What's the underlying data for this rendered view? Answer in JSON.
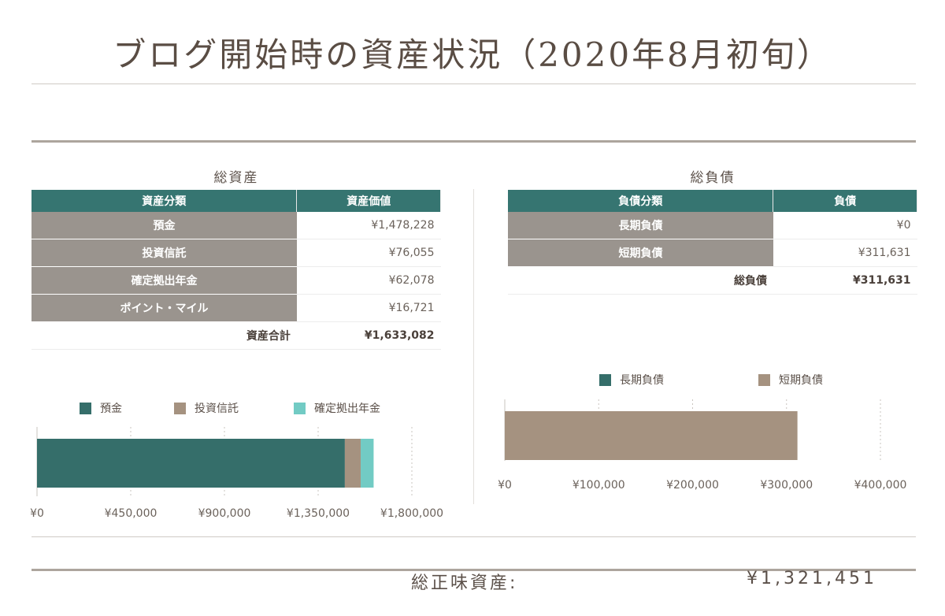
{
  "title": "ブログ開始時の資産状況（2020年8月初旬）",
  "assets": {
    "section_title": "総資産",
    "headers": [
      "資産分類",
      "資産価値"
    ],
    "rows": [
      {
        "label": "預金",
        "value": "¥1,478,228"
      },
      {
        "label": "投資信託",
        "value": "¥76,055"
      },
      {
        "label": "確定拠出年金",
        "value": "¥62,078"
      },
      {
        "label": "ポイント・マイル",
        "value": "¥16,721"
      }
    ],
    "total_label": "資産合計",
    "total_value": "¥1,633,082"
  },
  "liabilities": {
    "section_title": "総負債",
    "headers": [
      "負債分類",
      "負債"
    ],
    "rows": [
      {
        "label": "長期負債",
        "value": "¥0"
      },
      {
        "label": "短期負債",
        "value": "¥311,631"
      }
    ],
    "total_label": "総負債",
    "total_value": "¥311,631"
  },
  "net_worth": {
    "label": "総正味資産:",
    "value": "¥1,321,451"
  },
  "colors": {
    "header_teal": "#367571",
    "category_gray": "#9a948e",
    "deposit": "#356e6a",
    "investment": "#a59280",
    "pension": "#72cbc4",
    "long_term": "#356e6a",
    "short_term": "#a59280"
  },
  "chart_data": [
    {
      "type": "bar",
      "orientation": "horizontal",
      "stacked": true,
      "series": [
        {
          "name": "預金",
          "values": [
            1478228
          ]
        },
        {
          "name": "投資信託",
          "values": [
            76055
          ]
        },
        {
          "name": "確定拠出年金",
          "values": [
            62078
          ]
        }
      ],
      "xlim": [
        0,
        1800000
      ],
      "xticks": [
        0,
        450000,
        900000,
        1350000,
        1800000
      ],
      "xtick_labels": [
        "¥0",
        "¥450,000",
        "¥900,000",
        "¥1,350,000",
        "¥1,800,000"
      ],
      "grid": true,
      "legend_position": "top"
    },
    {
      "type": "bar",
      "orientation": "horizontal",
      "stacked": true,
      "series": [
        {
          "name": "長期負債",
          "values": [
            0
          ]
        },
        {
          "name": "短期負債",
          "values": [
            311631
          ]
        }
      ],
      "xlim": [
        0,
        400000
      ],
      "xticks": [
        0,
        100000,
        200000,
        300000,
        400000
      ],
      "xtick_labels": [
        "¥0",
        "¥100,000",
        "¥200,000",
        "¥300,000",
        "¥400,000"
      ],
      "grid": true,
      "legend_position": "top"
    }
  ]
}
